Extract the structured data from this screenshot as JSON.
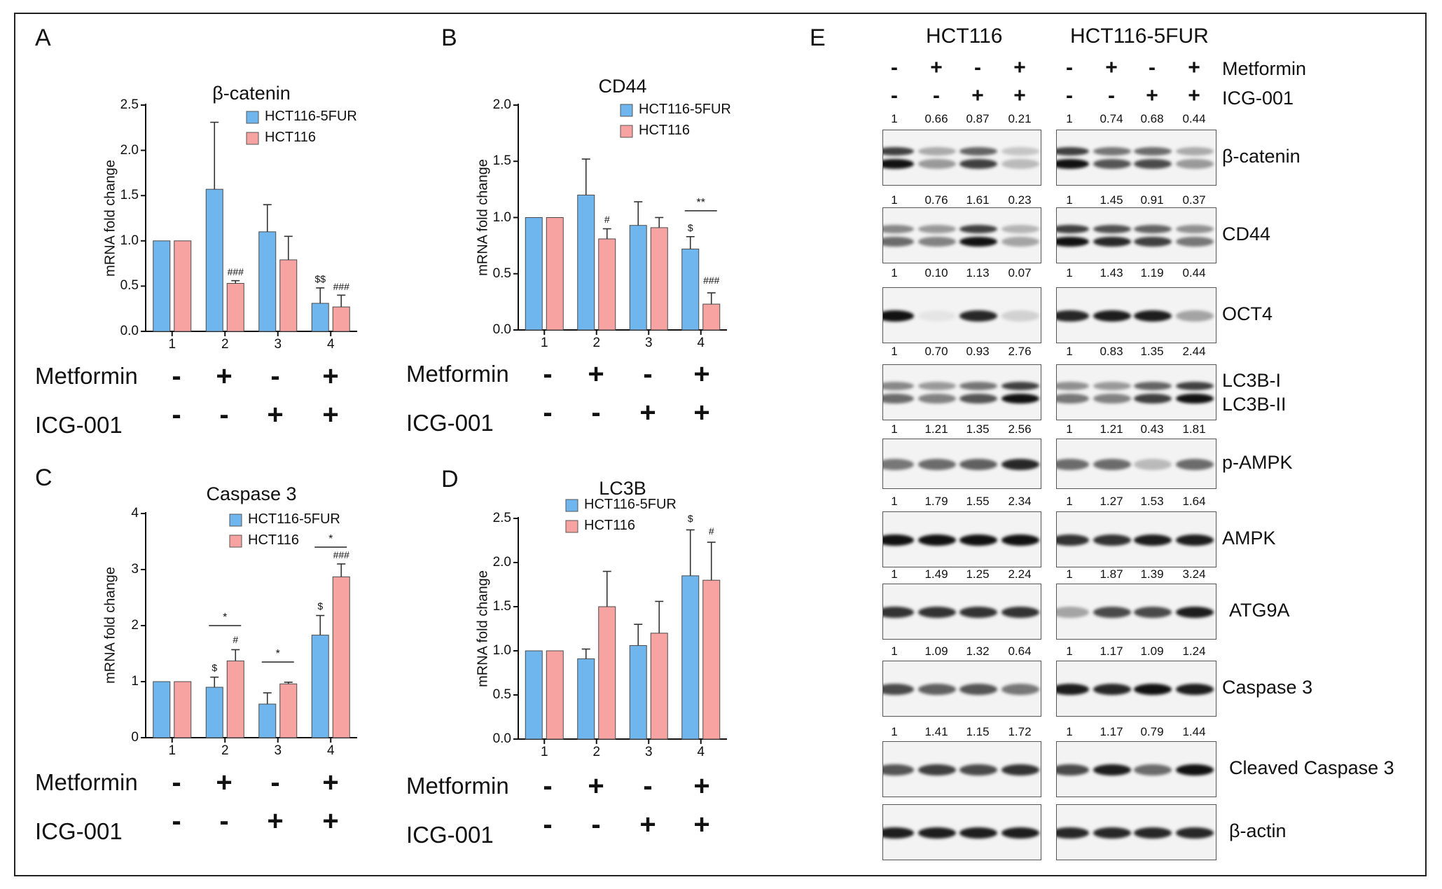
{
  "colors": {
    "hct116_5fur": "#6fb6ef",
    "hct116": "#f7a3a1",
    "band": "#111111"
  },
  "legend": {
    "series1": "HCT116-5FUR",
    "series2": "HCT116"
  },
  "conditions": {
    "metformin_label": "Metformin",
    "icg_label": "ICG-001",
    "metformin": [
      "-",
      "+",
      "-",
      "+"
    ],
    "icg": [
      "-",
      "-",
      "+",
      "+"
    ]
  },
  "chart_data": [
    {
      "panel": "A",
      "type": "bar",
      "title": "β-catenin",
      "ylabel": "mRNA fold change",
      "xlabel": "",
      "categories": [
        "1",
        "2",
        "3",
        "4"
      ],
      "ylim": [
        0,
        2.5
      ],
      "yticks": [
        "0.0",
        "0.5",
        "1.0",
        "1.5",
        "2.0",
        "2.5"
      ],
      "series": [
        {
          "name": "HCT116-5FUR",
          "values": [
            1.0,
            1.57,
            1.1,
            0.31
          ],
          "errors": [
            0,
            0.74,
            0.3,
            0.17
          ]
        },
        {
          "name": "HCT116",
          "values": [
            1.0,
            0.53,
            0.79,
            0.27
          ],
          "errors": [
            0,
            0.03,
            0.26,
            0.13
          ]
        }
      ],
      "annotations": [
        {
          "text": "###",
          "cat": 1,
          "series": 1,
          "value": 0.58
        },
        {
          "text": "$$",
          "cat": 3,
          "series": 0,
          "value": 0.5
        },
        {
          "text": "###",
          "cat": 3,
          "series": 1,
          "value": 0.42
        }
      ],
      "brackets": []
    },
    {
      "panel": "B",
      "type": "bar",
      "title": "CD44",
      "ylabel": "mRNA fold change",
      "xlabel": "",
      "categories": [
        "1",
        "2",
        "3",
        "4"
      ],
      "ylim": [
        0,
        2.0
      ],
      "yticks": [
        "0.0",
        "0.5",
        "1.0",
        "1.5",
        "2.0"
      ],
      "series": [
        {
          "name": "HCT116-5FUR",
          "values": [
            1.0,
            1.2,
            0.93,
            0.72
          ],
          "errors": [
            0,
            0.32,
            0.21,
            0.11
          ]
        },
        {
          "name": "HCT116",
          "values": [
            1.0,
            0.81,
            0.91,
            0.23
          ],
          "errors": [
            0,
            0.09,
            0.09,
            0.1
          ]
        }
      ],
      "annotations": [
        {
          "text": "#",
          "cat": 1,
          "series": 1,
          "value": 0.92
        },
        {
          "text": "$",
          "cat": 3,
          "series": 0,
          "value": 0.85
        },
        {
          "text": "###",
          "cat": 3,
          "series": 1,
          "value": 0.38
        }
      ],
      "brackets": [
        {
          "text": "**",
          "from_cat": 3,
          "from_series": 0,
          "to_cat": 3,
          "to_series": 1,
          "value": 1.06
        }
      ]
    },
    {
      "panel": "C",
      "type": "bar",
      "title": "Caspase 3",
      "ylabel": "mRNA fold change",
      "xlabel": "",
      "categories": [
        "1",
        "2",
        "3",
        "4"
      ],
      "ylim": [
        0,
        4
      ],
      "yticks": [
        "0",
        "1",
        "2",
        "3",
        "4"
      ],
      "series": [
        {
          "name": "HCT116-5FUR",
          "values": [
            1.0,
            0.9,
            0.6,
            1.83
          ],
          "errors": [
            0,
            0.18,
            0.2,
            0.35
          ]
        },
        {
          "name": "HCT116",
          "values": [
            1.0,
            1.37,
            0.96,
            2.87
          ],
          "errors": [
            0,
            0.2,
            0.03,
            0.23
          ]
        }
      ],
      "annotations": [
        {
          "text": "$",
          "cat": 1,
          "series": 0,
          "value": 1.13
        },
        {
          "text": "#",
          "cat": 1,
          "series": 1,
          "value": 1.62
        },
        {
          "text": "$",
          "cat": 3,
          "series": 0,
          "value": 2.22
        },
        {
          "text": "###",
          "cat": 3,
          "series": 1,
          "value": 3.14
        }
      ],
      "brackets": [
        {
          "text": "*",
          "from_cat": 1,
          "from_series": 0,
          "to_cat": 1,
          "to_series": 1,
          "value": 2.0
        },
        {
          "text": "*",
          "from_cat": 2,
          "from_series": 0,
          "to_cat": 2,
          "to_series": 1,
          "value": 1.35
        },
        {
          "text": "*",
          "from_cat": 3,
          "from_series": 0,
          "to_cat": 3,
          "to_series": 1,
          "value": 3.4
        }
      ]
    },
    {
      "panel": "D",
      "type": "bar",
      "title": "LC3B",
      "ylabel": "mRNA fold change",
      "xlabel": "",
      "categories": [
        "1",
        "2",
        "3",
        "4"
      ],
      "ylim": [
        0,
        2.5
      ],
      "yticks": [
        "0.0",
        "0.5",
        "1.0",
        "1.5",
        "2.0",
        "2.5"
      ],
      "series": [
        {
          "name": "HCT116-5FUR",
          "values": [
            1.0,
            0.91,
            1.06,
            1.85
          ],
          "errors": [
            0,
            0.11,
            0.24,
            0.52
          ]
        },
        {
          "name": "HCT116",
          "values": [
            1.0,
            1.5,
            1.2,
            1.8
          ],
          "errors": [
            0,
            0.4,
            0.36,
            0.43
          ]
        }
      ],
      "annotations": [
        {
          "text": "$",
          "cat": 3,
          "series": 0,
          "value": 2.42
        },
        {
          "text": "#",
          "cat": 3,
          "series": 1,
          "value": 2.28
        }
      ],
      "brackets": []
    }
  ],
  "western": {
    "panel": "E",
    "cell_lines": [
      "HCT116",
      "HCT116-5FUR"
    ],
    "treatment_labels": {
      "metformin": "Metformin",
      "icg": "ICG-001"
    },
    "metformin": [
      "-",
      "+",
      "-",
      "+"
    ],
    "icg": [
      "-",
      "-",
      "+",
      "+"
    ],
    "blots": [
      {
        "label": "β-catenin",
        "hct116": [
          "1",
          "0.66",
          "0.87",
          "0.21"
        ],
        "fur": [
          "1",
          "0.74",
          "0.68",
          "0.44"
        ]
      },
      {
        "label": "CD44",
        "hct116": [
          "1",
          "0.76",
          "1.61",
          "0.23"
        ],
        "fur": [
          "1",
          "1.45",
          "0.91",
          "0.37"
        ]
      },
      {
        "label": "OCT4",
        "hct116": [
          "1",
          "0.10",
          "1.13",
          "0.07"
        ],
        "fur": [
          "1",
          "1.43",
          "1.19",
          "0.44"
        ]
      },
      {
        "label": "LC3B-I",
        "label2": "LC3B-II",
        "hct116": [
          "1",
          "0.70",
          "0.93",
          "2.76"
        ],
        "fur": [
          "1",
          "0.83",
          "1.35",
          "2.44"
        ]
      },
      {
        "label": "p-AMPK",
        "hct116": [
          "1",
          "1.21",
          "1.35",
          "2.56"
        ],
        "fur": [
          "1",
          "1.21",
          "0.43",
          "1.81"
        ]
      },
      {
        "label": "AMPK",
        "hct116": [
          "1",
          "1.79",
          "1.55",
          "2.34"
        ],
        "fur": [
          "1",
          "1.27",
          "1.53",
          "1.64"
        ]
      },
      {
        "label": "ATG9A",
        "hct116": [
          "1",
          "1.49",
          "1.25",
          "2.24"
        ],
        "fur": [
          "1",
          "1.87",
          "1.39",
          "3.24"
        ]
      },
      {
        "label": "Caspase 3",
        "hct116": [
          "1",
          "1.09",
          "1.32",
          "0.64"
        ],
        "fur": [
          "1",
          "1.17",
          "1.09",
          "1.24"
        ]
      },
      {
        "label": "Cleaved Caspase 3",
        "hct116": [
          "1",
          "1.41",
          "1.15",
          "1.72"
        ],
        "fur": [
          "1",
          "1.17",
          "0.79",
          "1.44"
        ]
      },
      {
        "label": "β-actin",
        "hct116": [],
        "fur": []
      }
    ]
  }
}
